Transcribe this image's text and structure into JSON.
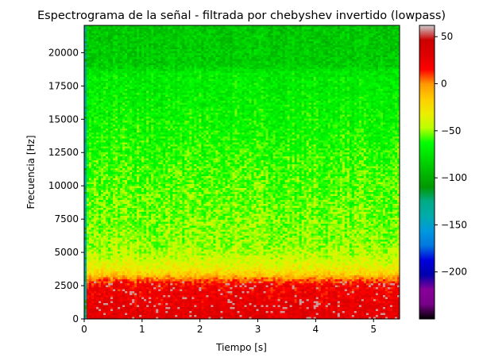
{
  "chart_data": {
    "type": "heatmap",
    "title": "Espectrograma de la señal - filtrada por chebyshev invertido (lowpass)",
    "xlabel": "Tiempo [s]",
    "ylabel": "Frecuencia [Hz]",
    "xlim": [
      0,
      5.45
    ],
    "ylim": [
      0,
      22050
    ],
    "xticks": [
      0,
      1,
      2,
      3,
      4,
      5
    ],
    "xtick_labels": [
      "0",
      "1",
      "2",
      "3",
      "4",
      "5"
    ],
    "yticks": [
      0,
      2500,
      5000,
      7500,
      10000,
      12500,
      15000,
      17500,
      20000
    ],
    "ytick_labels": [
      "0",
      "2500",
      "5000",
      "7500",
      "10000",
      "12500",
      "15000",
      "17500",
      "20000"
    ],
    "colormap": "nipy_spectral",
    "colorbar": {
      "range": [
        -250,
        62
      ],
      "ticks": [
        50,
        0,
        -50,
        -100,
        -150,
        -200
      ],
      "tick_labels": [
        "50",
        "0",
        "−50",
        "−100",
        "−150",
        "−200"
      ]
    },
    "frequency_profile": {
      "freq_hz": [
        0,
        500,
        1500,
        2500,
        2900,
        3300,
        3800,
        4500,
        5500,
        7000,
        9000,
        11000,
        13000,
        15000,
        17000,
        18500,
        19000,
        22050
      ],
      "level_db": [
        30,
        28,
        24,
        20,
        8,
        -15,
        -32,
        -42,
        -50,
        -52,
        -55,
        -58,
        -62,
        -66,
        -70,
        -72,
        -85,
        -88
      ]
    },
    "grid": false
  }
}
